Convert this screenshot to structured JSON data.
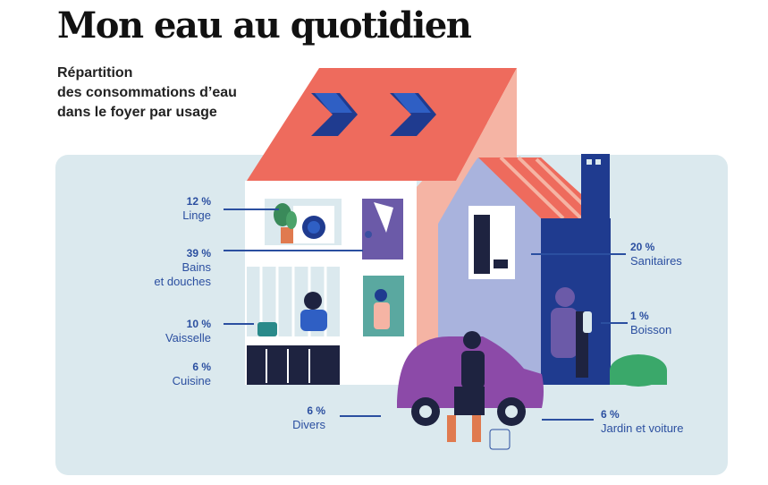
{
  "header": {
    "title": "Mon eau au quotidien",
    "subtitle_lines": [
      "Répartition",
      "des consommations d’eau",
      "dans le foyer par usage"
    ]
  },
  "usages": [
    {
      "id": "linge",
      "pct": "12 %",
      "label_lines": [
        "Linge"
      ]
    },
    {
      "id": "bains",
      "pct": "39 %",
      "label_lines": [
        "Bains",
        "et douches"
      ]
    },
    {
      "id": "vaisselle",
      "pct": "10 %",
      "label_lines": [
        "Vaisselle"
      ]
    },
    {
      "id": "cuisine",
      "pct": "6 %",
      "label_lines": [
        "Cuisine"
      ]
    },
    {
      "id": "divers",
      "pct": "6 %",
      "label_lines": [
        "Divers"
      ]
    },
    {
      "id": "sanitaires",
      "pct": "20 %",
      "label_lines": [
        "Sanitaires"
      ]
    },
    {
      "id": "boisson",
      "pct": "1 %",
      "label_lines": [
        "Boisson"
      ]
    },
    {
      "id": "jardin",
      "pct": "6 %",
      "label_lines": [
        "Jardin et voiture"
      ]
    }
  ],
  "colors": {
    "accent_blue": "#2b4fa0",
    "background": "#dbe9ee",
    "roof": "#ee6b5d",
    "wall_pink": "#f5b4a4",
    "annex_wall": "#a9b3dd",
    "navy": "#1f3b8f",
    "car": "#8c4aa8"
  }
}
